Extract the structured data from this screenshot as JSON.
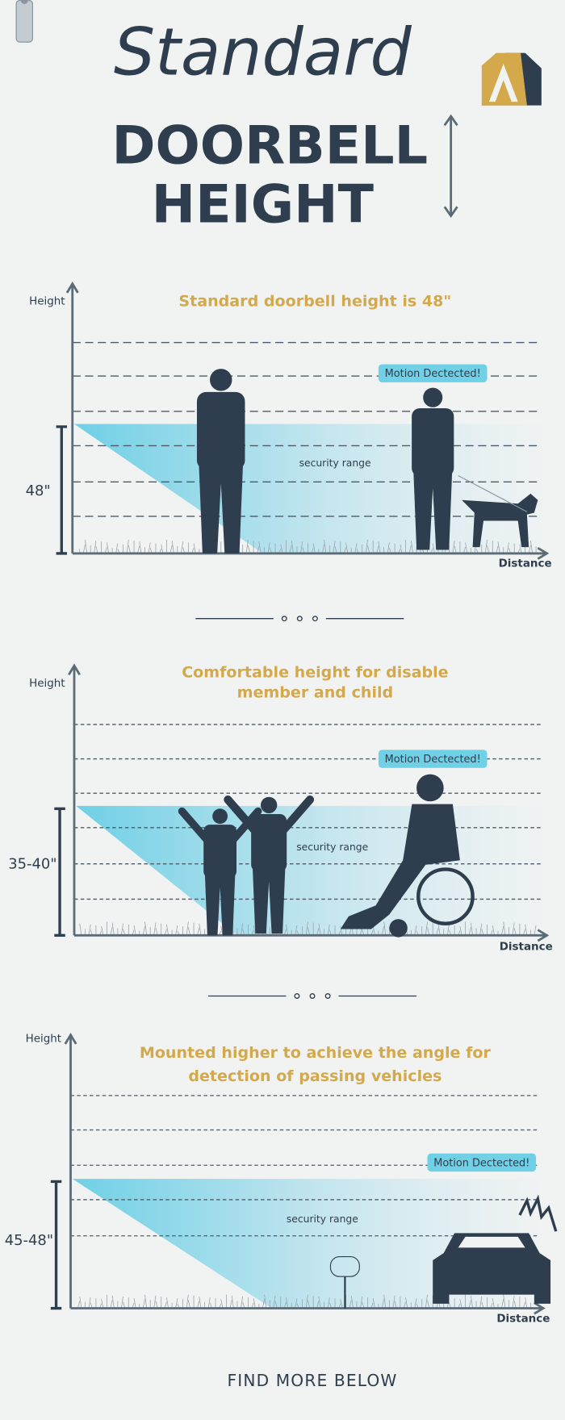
{
  "header": {
    "script": "Standard",
    "title_lines": [
      "DOORBELL",
      "HEIGHT"
    ]
  },
  "panels": [
    {
      "title_lines": [
        "Standard doorbell height is 48\""
      ],
      "y_label": "Height",
      "x_label": "Distance",
      "measure": "48\"",
      "range_label": "security range",
      "motion_label": "Motion Dectected!"
    },
    {
      "title_lines": [
        "Comfortable height for disable",
        "member and child"
      ],
      "y_label": "Height",
      "x_label": "Distance",
      "measure": "35-40\"",
      "range_label": "security range",
      "motion_label": "Motion Dectected!"
    },
    {
      "title_lines": [
        "Mounted higher to achieve the angle for",
        "detection of passing vehicles"
      ],
      "y_label": "Height",
      "x_label": "Distance",
      "measure": "45-48\"",
      "range_label": "security range",
      "motion_label": "Motion Dectected!"
    }
  ],
  "footer": "FIND MORE BELOW"
}
